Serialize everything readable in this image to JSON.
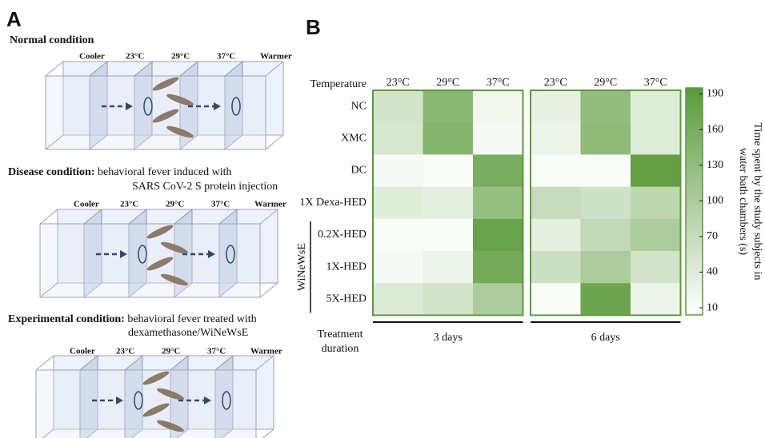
{
  "panel_a": {
    "label": "A",
    "conditions": [
      {
        "title": "Normal condition",
        "description": [],
        "chambers": [
          "Cooler",
          "23°C",
          "29°C",
          "37°C",
          "Warmer"
        ]
      },
      {
        "title": "Disease condition:",
        "description": [
          "behavioral fever induced with",
          "SARS CoV-2 S protein injection"
        ],
        "chambers": [
          "Cooler",
          "23°C",
          "29°C",
          "37°C",
          "Warmer"
        ]
      },
      {
        "title": "Experimental condition:",
        "description": [
          "behavioral fever treated with",
          "dexamethasone/WiNeWsE"
        ],
        "chambers": [
          "Cooler",
          "23°C",
          "29°C",
          "37°C",
          "Warmer"
        ]
      }
    ]
  },
  "chart_data": {
    "type": "heatmap",
    "panel_label": "B",
    "row_header": "Temperature",
    "categories": [
      "NC",
      "XMC",
      "DC",
      "1X Dexa-HED",
      "0.2X-HED",
      "1X-HED",
      "5X-HED"
    ],
    "bracket_label": "WiNeWsE",
    "group_axis_label": [
      "Treatment",
      "duration"
    ],
    "groups": [
      {
        "name": "3 days",
        "columns": [
          "23°C",
          "29°C",
          "37°C"
        ],
        "values": [
          [
            55,
            140,
            20
          ],
          [
            50,
            145,
            15
          ],
          [
            15,
            10,
            160
          ],
          [
            40,
            35,
            125
          ],
          [
            10,
            10,
            180
          ],
          [
            15,
            25,
            165
          ],
          [
            45,
            55,
            100
          ]
        ]
      },
      {
        "name": "6 days",
        "columns": [
          "23°C",
          "29°C",
          "37°C"
        ],
        "values": [
          [
            30,
            130,
            40
          ],
          [
            25,
            135,
            40
          ],
          [
            10,
            10,
            185
          ],
          [
            70,
            60,
            80
          ],
          [
            35,
            75,
            100
          ],
          [
            65,
            100,
            55
          ],
          [
            10,
            175,
            25
          ]
        ]
      }
    ],
    "colors": [
      "#ffffff",
      "#5b9a3c"
    ],
    "zlim": [
      4,
      195
    ],
    "zticks": [
      10,
      40,
      70,
      100,
      130,
      160,
      190
    ],
    "colorbar_label": [
      "Time spent by the study subjects in",
      "water bath chambers (s)"
    ]
  }
}
